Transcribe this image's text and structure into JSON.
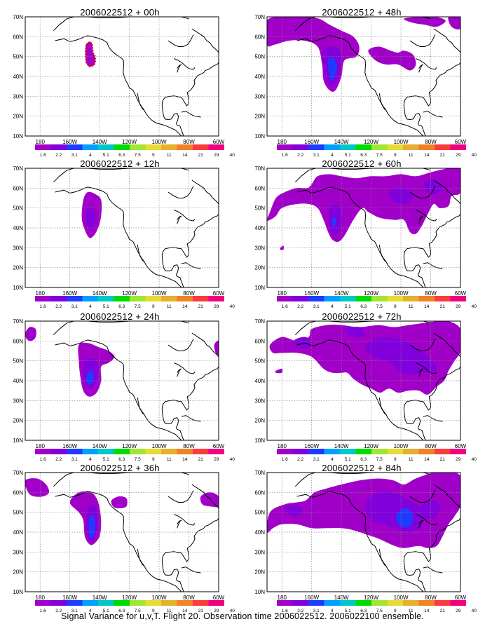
{
  "caption": "Signal Variance for u,v,T. Flight 20. Observation time 2006022512. 2006022100 ensemble.",
  "axes": {
    "lon_ticks": [
      "180",
      "160W",
      "140W",
      "120W",
      "100W",
      "80W",
      "60W"
    ],
    "lat_ticks": [
      "10N",
      "20N",
      "30N",
      "40N",
      "50N",
      "60N",
      "70N"
    ],
    "lon_range": [
      170,
      300
    ],
    "lat_range": [
      10,
      70
    ],
    "grid": "dotted"
  },
  "colorbar": {
    "levels": [
      "1.6",
      "2.2",
      "3.1",
      "4",
      "5.1",
      "6.3",
      "7.5",
      "9",
      "11",
      "14",
      "21",
      "29",
      "40"
    ],
    "colors": [
      "#a000c8",
      "#8200dc",
      "#1e3cff",
      "#00a0ff",
      "#00c8c8",
      "#00dc00",
      "#a0e632",
      "#e6dc32",
      "#e6af2d",
      "#f08228",
      "#fa3c3c",
      "#f00082"
    ]
  },
  "panels": [
    {
      "title": "2006022512 + 00h"
    },
    {
      "title": "2006022512 + 48h"
    },
    {
      "title": "2006022512 + 12h"
    },
    {
      "title": "2006022512 + 60h"
    },
    {
      "title": "2006022512 + 24h"
    },
    {
      "title": "2006022512 + 72h"
    },
    {
      "title": "2006022512 + 36h"
    },
    {
      "title": "2006022512 + 84h"
    }
  ],
  "chart_data": {
    "type": "heatmap",
    "description_of_fields": "Contour-filled signal variance over North Pacific / North America, one panel per forecast lead time",
    "lead_times_h": [
      0,
      12,
      24,
      36,
      48,
      60,
      72,
      84
    ],
    "variable": "Signal Variance for u,v,T",
    "color_levels": [
      1.6,
      2.2,
      3.1,
      4,
      5.1,
      6.3,
      7.5,
      9,
      11,
      14,
      21,
      29,
      40
    ],
    "approx_max_region": [
      {
        "lead_h": 0,
        "center_lon": "145W",
        "center_lat": 50,
        "note": "observation region outlined in red dots"
      },
      {
        "lead_h": 12,
        "center_lon": "142W",
        "center_lat": 45
      },
      {
        "lead_h": 24,
        "center_lon": "142W",
        "center_lat": 45
      },
      {
        "lead_h": 36,
        "center_lon": "142W",
        "center_lat": 45
      },
      {
        "lead_h": 48,
        "center_lon": "140W",
        "center_lat": 45
      },
      {
        "lead_h": 60,
        "center_lon": "138W",
        "center_lat": 45
      },
      {
        "lead_h": 72,
        "center_lon": "100W",
        "center_lat": 50
      },
      {
        "lead_h": 84,
        "center_lon": "100W",
        "center_lat": 47
      }
    ]
  }
}
